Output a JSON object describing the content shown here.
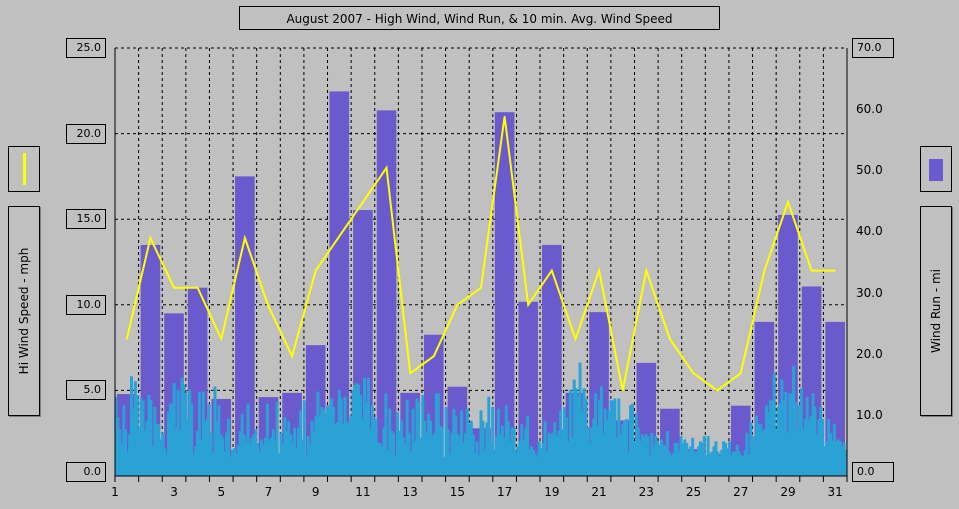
{
  "chart_data": {
    "type": "bar",
    "title": "August 2007 - High Wind, Wind Run, & 10 min. Avg. Wind Speed",
    "xlabel": "",
    "ylabel_left": "Hi Wind Speed - mph",
    "ylabel_right": "Wind Run - mi",
    "x_ticks": [
      "1",
      "3",
      "5",
      "7",
      "9",
      "11",
      "13",
      "15",
      "17",
      "19",
      "21",
      "23",
      "25",
      "27",
      "29",
      "31"
    ],
    "left_ticks": [
      "0.0",
      "5.0",
      "10.0",
      "15.0",
      "20.0",
      "25.0"
    ],
    "right_ticks": [
      "0.0",
      "10.0",
      "20.0",
      "30.0",
      "40.0",
      "50.0",
      "60.0",
      "70.0"
    ],
    "ylim_left": [
      0,
      25
    ],
    "ylim_right": [
      0,
      70
    ],
    "grid": true,
    "days": [
      1,
      2,
      3,
      4,
      5,
      6,
      7,
      8,
      9,
      10,
      11,
      12,
      13,
      14,
      15,
      16,
      17,
      18,
      19,
      20,
      21,
      22,
      23,
      24,
      25,
      26,
      27,
      28,
      29,
      30,
      31
    ],
    "series": [
      {
        "legend_kind": "line",
        "color": "#ffff00",
        "axis": "left",
        "values": [
          8.0,
          13.9,
          11.0,
          11.0,
          8.0,
          13.9,
          9.9,
          7.0,
          12.0,
          14.0,
          16.0,
          18.0,
          6.0,
          7.0,
          10.0,
          11.0,
          21.0,
          10.0,
          12.0,
          8.0,
          12.0,
          5.0,
          12.0,
          8.0,
          6.0,
          5.0,
          6.0,
          12.0,
          16.0,
          12.0,
          12.0
        ]
      },
      {
        "legend_kind": "bar",
        "color": "#6a5acd",
        "axis": "right",
        "values": [
          13.4,
          37.8,
          26.6,
          30.8,
          12.6,
          49.0,
          12.9,
          13.6,
          21.4,
          62.9,
          43.5,
          59.8,
          13.6,
          23.1,
          14.6,
          7.8,
          59.5,
          28.5,
          37.8,
          13.6,
          26.8,
          9.1,
          18.5,
          11.0,
          4.4,
          3.6,
          11.5,
          25.2,
          42.7,
          31.0,
          25.2
        ]
      },
      {
        "legend_kind": "line",
        "color": "#2aa2d6",
        "axis": "left",
        "values": [
          4.6,
          3.4,
          2.7,
          1.9,
          4.1,
          2.7,
          1.4,
          2.4,
          5.8,
          3.9,
          5.5,
          4.7,
          2.7,
          4.5,
          4.4,
          2.6,
          3.2,
          4.7,
          4.4,
          1.7,
          4.0,
          3.0,
          3.0,
          2.1,
          2.5,
          1.6,
          1.3,
          3.7,
          4.2,
          4.2,
          5.4,
          2.8,
          5.0,
          2.6,
          5.7,
          5.3,
          4.8,
          3.3,
          5.0,
          4.2,
          1.3,
          1.7,
          2.6,
          4.9,
          2.1,
          4.9,
          3.1,
          3.3,
          4.2,
          2.5,
          1.3,
          5.2,
          3.1,
          4.1,
          2.4,
          2.2,
          1.4,
          2.5,
          3.3,
          1.1,
          1.5,
          1.6,
          1.3,
          1.8,
          2.6,
          3.6,
          2.4,
          2.0,
          4.2,
          1.9,
          2.2,
          2.4,
          2.7,
          1.9,
          1.4,
          2.1,
          1.8,
          2.2,
          4.2,
          2.0,
          2.2,
          2.7,
          2.1,
          4.3,
          1.3,
          2.5,
          1.8,
          3.4,
          2.6,
          3.2,
          2.4,
          2.0,
          2.8,
          1.6,
          2.8,
          3.8,
          2.1,
          4.4,
          1.2,
          2.3,
          1.8,
          3.2,
          2.6,
          3.5,
          4.9,
          3.5,
          4.0,
          3.9,
          3.6,
          4.1,
          3.9,
          4.5,
          4.0,
          3.0,
          3.1,
          5.0,
          4.5,
          3.0,
          4.6,
          3.1,
          3.1,
          3.5,
          5.0,
          5.3,
          5.4,
          5.3,
          4.7,
          3.3,
          5.7,
          4.3,
          5.7,
          2.7,
          4.1,
          3.4,
          3.3,
          1.9,
          1.9,
          1.7,
          2.8,
          4.8,
          1.5,
          3.9,
          2.6,
          2.5,
          1.2,
          3.7,
          2.6,
          3.2,
          2.2,
          1.8,
          4.4,
          2.5,
          1.4,
          3.9,
          2.0,
          4.5,
          4.3,
          2.2,
          4.7,
          3.2,
          2.5,
          3.6,
          3.2,
          2.3,
          2.5,
          4.8,
          4.8,
          2.9,
          2.8,
          1.1,
          4.0,
          2.7,
          1.3,
          2.5,
          3.9,
          3.5,
          2.4,
          2.3,
          3.8,
          1.9,
          2.5,
          3.9,
          3.0,
          3.2,
          2.4,
          1.3,
          2.0,
          1.2,
          3.8,
          3.2,
          1.5,
          3.1,
          4.6,
          1.9,
          4.0,
          1.5,
          2.3,
          3.9,
          2.4,
          2.9,
          2.2,
          4.1,
          3.2,
          2.0,
          2.8,
          2.8,
          1.4,
          1.7,
          2.0,
          3.0,
          2.1,
          2.8,
          3.5,
          1.5,
          1.7,
          1.5,
          1.3,
          1.1,
          2.0,
          1.6,
          1.9,
          3.2,
          1.4,
          2.5,
          2.4,
          2.5,
          3.1,
          2.3,
          2.6,
          3.8,
          2.7,
          4.0,
          3.4,
          2.0,
          5.0,
          2.2,
          5.6,
          5.1,
          4.6,
          6.6,
          3.8,
          5.1,
          4.5,
          2.8,
          1.9,
          2.8,
          3.3,
          4.8,
          2.9,
          4.4,
          5.2,
          2.4,
          3.9,
          3.2,
          3.8,
          4.4,
          4.4,
          4.5,
          2.2,
          4.5,
          2.4,
          3.0,
          3.2,
          3.3,
          1.4,
          4.1,
          4.2,
          2.0,
          3.6,
          2.8,
          2.0,
          2.4,
          2.2,
          2.4,
          2.3,
          1.2,
          2.5,
          1.7,
          2.3,
          2.0,
          1.8,
          2.1,
          1.8,
          1.7,
          2.6,
          1.4,
          1.2,
          1.3,
          1.9,
          1.9,
          1.4,
          2.3,
          1.9,
          2.1,
          1.9,
          1.4,
          1.7,
          2.2,
          1.4,
          1.4,
          1.7,
          2.0,
          1.9,
          2.3,
          1.2,
          2.3,
          1.3,
          1.4,
          1.7,
          2.0,
          1.4,
          1.1,
          1.5,
          2.0,
          1.9,
          1.6,
          2.0,
          1.2,
          1.4,
          1.4,
          1.8,
          1.4,
          1.2,
          1.1,
          1.5,
          2.5,
          1.2,
          3.1,
          2.3,
          1.8,
          3.5,
          3.0,
          3.0,
          2.6,
          2.7,
          4.1,
          3.7,
          4.4,
          4.4,
          6.0,
          2.7,
          4.0,
          4.2,
          5.6,
          4.4,
          4.9,
          2.5,
          4.8,
          4.8,
          6.4,
          4.3,
          2.7,
          4.1,
          5.1,
          2.7,
          3.3,
          4.6,
          3.2,
          3.5,
          4.8,
          4.0,
          2.4,
          3.3,
          4.0,
          3.3,
          1.7,
          2.0,
          3.3,
          2.5,
          2.0,
          3.0,
          2.0,
          2.1,
          2.0,
          1.7,
          1.9,
          1.5
        ]
      }
    ]
  }
}
